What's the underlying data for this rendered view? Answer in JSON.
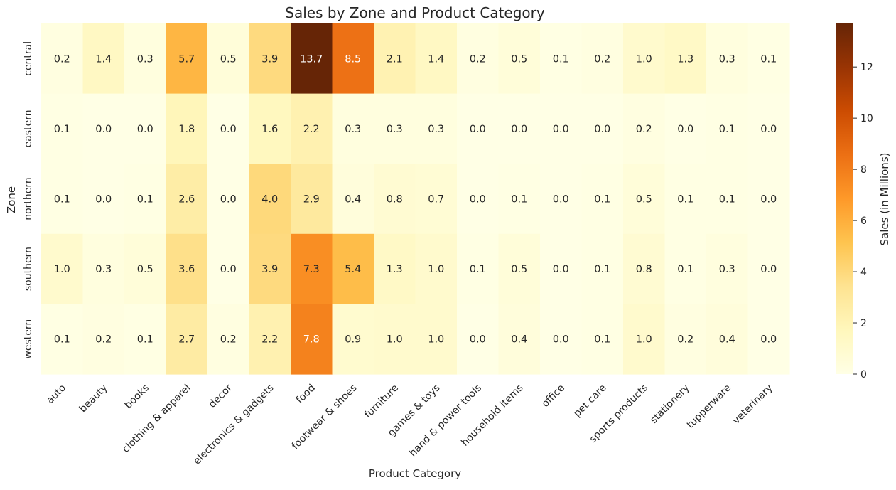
{
  "chart_data": {
    "type": "heatmap",
    "title": "Sales by Zone and Product Category",
    "xlabel": "Product Category",
    "ylabel": "Zone",
    "x_categories": [
      "auto",
      "beauty",
      "books",
      "clothing & apparel",
      "decor",
      "electronics & gadgets",
      "food",
      "footwear & shoes",
      "furniture",
      "games & toys",
      "hand & power tools",
      "household items",
      "office",
      "pet care",
      "sports products",
      "stationery",
      "tupperware",
      "veterinary"
    ],
    "y_categories": [
      "central",
      "eastern",
      "northern",
      "southern",
      "western"
    ],
    "values": [
      [
        0.2,
        1.4,
        0.3,
        5.7,
        0.5,
        3.9,
        13.7,
        8.5,
        2.1,
        1.4,
        0.2,
        0.5,
        0.1,
        0.2,
        1.0,
        1.3,
        0.3,
        0.1
      ],
      [
        0.1,
        0.0,
        0.0,
        1.8,
        0.0,
        1.6,
        2.2,
        0.3,
        0.3,
        0.3,
        0.0,
        0.0,
        0.0,
        0.0,
        0.2,
        0.0,
        0.1,
        0.0
      ],
      [
        0.1,
        0.0,
        0.1,
        2.6,
        0.0,
        4.0,
        2.9,
        0.4,
        0.8,
        0.7,
        0.0,
        0.1,
        0.0,
        0.1,
        0.5,
        0.1,
        0.1,
        0.0
      ],
      [
        1.0,
        0.3,
        0.5,
        3.6,
        0.0,
        3.9,
        7.3,
        5.4,
        1.3,
        1.0,
        0.1,
        0.5,
        0.0,
        0.1,
        0.8,
        0.1,
        0.3,
        0.0
      ],
      [
        0.1,
        0.2,
        0.1,
        2.7,
        0.2,
        2.2,
        7.8,
        0.9,
        1.0,
        1.0,
        0.0,
        0.4,
        0.0,
        0.1,
        1.0,
        0.2,
        0.4,
        0.0
      ]
    ],
    "colorbar": {
      "label": "Sales (in Millions)",
      "vmin": 0,
      "vmax": 13.7,
      "ticks": [
        0,
        2,
        4,
        6,
        8,
        10,
        12
      ],
      "colormap": "YlOrBr",
      "colors": [
        "#ffffe5",
        "#fff7bc",
        "#fee391",
        "#fec44f",
        "#fe9929",
        "#ec7014",
        "#cc4c02",
        "#993404",
        "#662506"
      ]
    }
  }
}
